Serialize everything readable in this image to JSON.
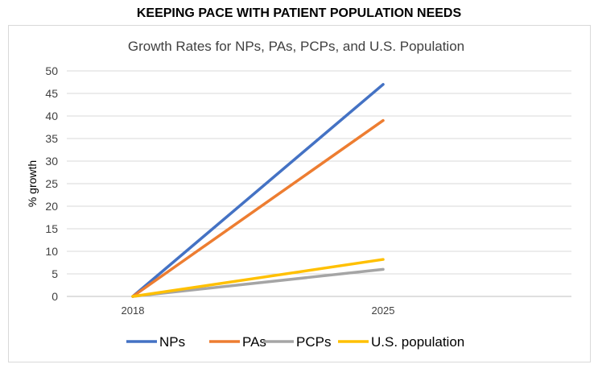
{
  "heading": "KEEPING PACE WITH PATIENT POPULATION NEEDS",
  "chart_data": {
    "type": "line",
    "title": "Growth Rates for NPs, PAs, PCPs, and U.S. Population",
    "xlabel": "",
    "ylabel": "% growth",
    "x": [
      "2018",
      "2025"
    ],
    "ylim": [
      0,
      50
    ],
    "yticks": [
      0,
      5,
      10,
      15,
      20,
      25,
      30,
      35,
      40,
      45,
      50
    ],
    "grid": true,
    "legend_position": "bottom",
    "series": [
      {
        "name": "NPs",
        "values": [
          0,
          47
        ],
        "color": "#4472C4"
      },
      {
        "name": "PAs",
        "values": [
          0,
          39
        ],
        "color": "#ED7D31"
      },
      {
        "name": "PCPs",
        "values": [
          0,
          6
        ],
        "color": "#A5A5A5"
      },
      {
        "name": "U.S. population",
        "values": [
          0,
          8.2
        ],
        "color": "#FFC000"
      }
    ]
  }
}
